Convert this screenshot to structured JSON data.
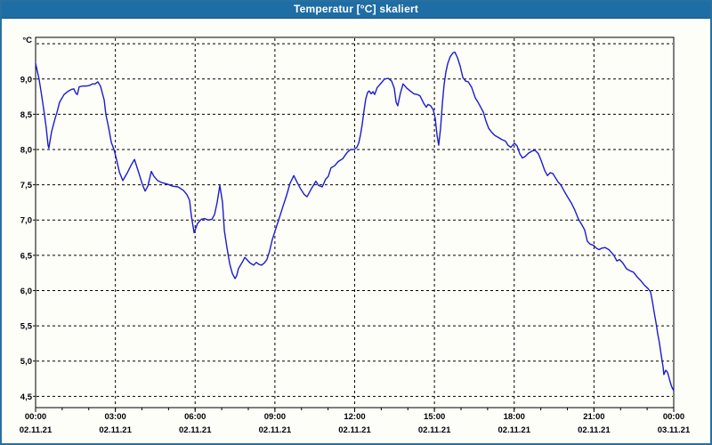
{
  "window": {
    "title": "Temperatur [°C] skaliert"
  },
  "colors": {
    "titlebar_bg": "#1e6da4",
    "titlebar_text": "#ffffff",
    "window_bg": "#fdfef7",
    "window_border": "#28709f",
    "series_line": "#1c1ccd",
    "grid": "#000000",
    "axis": "#000000",
    "label_text": "#000008"
  },
  "chart_data": {
    "type": "line",
    "title": "Temperatur [°C] skaliert",
    "xlabel": "",
    "ylabel": "°C",
    "x_unit": "hours since 02.11.21 00:00",
    "xlim": [
      0,
      24
    ],
    "ylim": [
      4.34,
      9.59
    ],
    "grid": true,
    "legend": "none",
    "y_gridlines": [
      4.5,
      5.0,
      5.5,
      6.0,
      6.5,
      7.0,
      7.5,
      8.0,
      8.5,
      9.0,
      9.5
    ],
    "y_tick_labels": [
      {
        "value": 9.0,
        "label": "9,0"
      },
      {
        "value": 8.5,
        "label": "8,5"
      },
      {
        "value": 8.0,
        "label": "8,0"
      },
      {
        "value": 7.5,
        "label": "7,5"
      },
      {
        "value": 7.0,
        "label": "7,0"
      },
      {
        "value": 6.5,
        "label": "6,5"
      },
      {
        "value": 6.0,
        "label": "6,0"
      },
      {
        "value": 5.5,
        "label": "5,5"
      },
      {
        "value": 5.0,
        "label": "5,0"
      },
      {
        "value": 4.5,
        "label": "4,5"
      }
    ],
    "x_gridline_hours": [
      3,
      6,
      9,
      12,
      15,
      18,
      21
    ],
    "x_minor_tick_every_hours": 1,
    "x_major_ticks": [
      {
        "hour": 0,
        "time": "00:00",
        "date": "02.11.21"
      },
      {
        "hour": 3,
        "time": "03:00",
        "date": "02.11.21"
      },
      {
        "hour": 6,
        "time": "06:00",
        "date": "02.11.21"
      },
      {
        "hour": 9,
        "time": "09:00",
        "date": "02.11.21"
      },
      {
        "hour": 12,
        "time": "12:00",
        "date": "02.11.21"
      },
      {
        "hour": 15,
        "time": "15:00",
        "date": "02.11.21"
      },
      {
        "hour": 18,
        "time": "18:00",
        "date": "02.11.21"
      },
      {
        "hour": 21,
        "time": "21:00",
        "date": "02.11.21"
      },
      {
        "hour": 24,
        "time": "00:00",
        "date": "03.11.21"
      }
    ],
    "series": [
      {
        "name": "Temperatur",
        "color": "#1c1ccd",
        "points": [
          [
            0.0,
            9.22
          ],
          [
            0.07,
            9.1
          ],
          [
            0.13,
            9.0
          ],
          [
            0.23,
            8.76
          ],
          [
            0.33,
            8.5
          ],
          [
            0.4,
            8.3
          ],
          [
            0.47,
            8.06
          ],
          [
            0.5,
            8.02
          ],
          [
            0.6,
            8.25
          ],
          [
            0.74,
            8.45
          ],
          [
            0.8,
            8.52
          ],
          [
            0.9,
            8.67
          ],
          [
            1.07,
            8.78
          ],
          [
            1.24,
            8.83
          ],
          [
            1.34,
            8.85
          ],
          [
            1.44,
            8.86
          ],
          [
            1.51,
            8.8
          ],
          [
            1.57,
            8.78
          ],
          [
            1.64,
            8.89
          ],
          [
            1.77,
            8.9
          ],
          [
            1.91,
            8.9
          ],
          [
            2.04,
            8.91
          ],
          [
            2.14,
            8.93
          ],
          [
            2.24,
            8.93
          ],
          [
            2.34,
            8.96
          ],
          [
            2.44,
            8.9
          ],
          [
            2.58,
            8.7
          ],
          [
            2.64,
            8.5
          ],
          [
            2.74,
            8.32
          ],
          [
            2.85,
            8.1
          ],
          [
            2.95,
            8.0
          ],
          [
            3.05,
            7.85
          ],
          [
            3.15,
            7.68
          ],
          [
            3.28,
            7.56
          ],
          [
            3.45,
            7.67
          ],
          [
            3.58,
            7.77
          ],
          [
            3.72,
            7.86
          ],
          [
            3.88,
            7.67
          ],
          [
            4.02,
            7.5
          ],
          [
            4.12,
            7.41
          ],
          [
            4.22,
            7.48
          ],
          [
            4.35,
            7.69
          ],
          [
            4.45,
            7.62
          ],
          [
            4.59,
            7.56
          ],
          [
            4.75,
            7.53
          ],
          [
            4.95,
            7.51
          ],
          [
            5.15,
            7.48
          ],
          [
            5.36,
            7.47
          ],
          [
            5.56,
            7.42
          ],
          [
            5.69,
            7.36
          ],
          [
            5.79,
            7.28
          ],
          [
            5.86,
            7.05
          ],
          [
            5.96,
            6.82
          ],
          [
            6.09,
            6.95
          ],
          [
            6.23,
            7.01
          ],
          [
            6.36,
            7.02
          ],
          [
            6.49,
            7.0
          ],
          [
            6.63,
            7.01
          ],
          [
            6.73,
            7.08
          ],
          [
            6.83,
            7.25
          ],
          [
            6.93,
            7.49
          ],
          [
            7.03,
            7.25
          ],
          [
            7.1,
            6.85
          ],
          [
            7.2,
            6.6
          ],
          [
            7.3,
            6.38
          ],
          [
            7.4,
            6.24
          ],
          [
            7.5,
            6.17
          ],
          [
            7.56,
            6.21
          ],
          [
            7.63,
            6.31
          ],
          [
            7.77,
            6.4
          ],
          [
            7.87,
            6.47
          ],
          [
            7.97,
            6.43
          ],
          [
            8.07,
            6.39
          ],
          [
            8.2,
            6.36
          ],
          [
            8.3,
            6.4
          ],
          [
            8.4,
            6.37
          ],
          [
            8.5,
            6.36
          ],
          [
            8.6,
            6.39
          ],
          [
            8.7,
            6.44
          ],
          [
            8.8,
            6.56
          ],
          [
            8.9,
            6.72
          ],
          [
            9.0,
            6.84
          ],
          [
            9.14,
            7.0
          ],
          [
            9.31,
            7.2
          ],
          [
            9.44,
            7.35
          ],
          [
            9.57,
            7.52
          ],
          [
            9.71,
            7.63
          ],
          [
            9.84,
            7.53
          ],
          [
            9.97,
            7.44
          ],
          [
            10.11,
            7.36
          ],
          [
            10.21,
            7.33
          ],
          [
            10.38,
            7.45
          ],
          [
            10.54,
            7.55
          ],
          [
            10.64,
            7.49
          ],
          [
            10.78,
            7.47
          ],
          [
            10.91,
            7.58
          ],
          [
            11.01,
            7.62
          ],
          [
            11.11,
            7.74
          ],
          [
            11.25,
            7.77
          ],
          [
            11.38,
            7.83
          ],
          [
            11.55,
            7.87
          ],
          [
            11.72,
            7.96
          ],
          [
            11.85,
            8.0
          ],
          [
            11.98,
            8.0
          ],
          [
            12.08,
            8.03
          ],
          [
            12.15,
            8.09
          ],
          [
            12.22,
            8.21
          ],
          [
            12.28,
            8.35
          ],
          [
            12.35,
            8.55
          ],
          [
            12.42,
            8.72
          ],
          [
            12.49,
            8.81
          ],
          [
            12.55,
            8.83
          ],
          [
            12.62,
            8.79
          ],
          [
            12.69,
            8.82
          ],
          [
            12.75,
            8.78
          ],
          [
            12.85,
            8.88
          ],
          [
            12.99,
            8.94
          ],
          [
            13.12,
            9.0
          ],
          [
            13.26,
            9.01
          ],
          [
            13.39,
            8.97
          ],
          [
            13.49,
            8.87
          ],
          [
            13.56,
            8.67
          ],
          [
            13.62,
            8.62
          ],
          [
            13.72,
            8.8
          ],
          [
            13.82,
            8.93
          ],
          [
            13.96,
            8.87
          ],
          [
            14.09,
            8.83
          ],
          [
            14.23,
            8.79
          ],
          [
            14.36,
            8.78
          ],
          [
            14.46,
            8.76
          ],
          [
            14.59,
            8.66
          ],
          [
            14.69,
            8.6
          ],
          [
            14.76,
            8.64
          ],
          [
            14.86,
            8.62
          ],
          [
            14.96,
            8.56
          ],
          [
            15.03,
            8.44
          ],
          [
            15.1,
            8.2
          ],
          [
            15.16,
            8.06
          ],
          [
            15.23,
            8.3
          ],
          [
            15.3,
            8.66
          ],
          [
            15.36,
            8.91
          ],
          [
            15.43,
            9.1
          ],
          [
            15.5,
            9.22
          ],
          [
            15.6,
            9.32
          ],
          [
            15.7,
            9.37
          ],
          [
            15.77,
            9.38
          ],
          [
            15.87,
            9.3
          ],
          [
            15.97,
            9.18
          ],
          [
            16.07,
            9.02
          ],
          [
            16.17,
            8.97
          ],
          [
            16.27,
            8.96
          ],
          [
            16.4,
            8.88
          ],
          [
            16.54,
            8.73
          ],
          [
            16.64,
            8.67
          ],
          [
            16.74,
            8.6
          ],
          [
            16.84,
            8.53
          ],
          [
            16.94,
            8.4
          ],
          [
            17.04,
            8.3
          ],
          [
            17.14,
            8.25
          ],
          [
            17.27,
            8.2
          ],
          [
            17.41,
            8.17
          ],
          [
            17.54,
            8.14
          ],
          [
            17.67,
            8.12
          ],
          [
            17.77,
            8.06
          ],
          [
            17.87,
            8.03
          ],
          [
            18.01,
            8.09
          ],
          [
            18.11,
            8.05
          ],
          [
            18.21,
            7.94
          ],
          [
            18.31,
            7.88
          ],
          [
            18.41,
            7.9
          ],
          [
            18.54,
            7.95
          ],
          [
            18.68,
            7.98
          ],
          [
            18.78,
            7.99
          ],
          [
            18.91,
            7.94
          ],
          [
            19.01,
            7.85
          ],
          [
            19.15,
            7.7
          ],
          [
            19.25,
            7.63
          ],
          [
            19.35,
            7.67
          ],
          [
            19.45,
            7.66
          ],
          [
            19.55,
            7.6
          ],
          [
            19.65,
            7.54
          ],
          [
            19.75,
            7.5
          ],
          [
            19.88,
            7.41
          ],
          [
            20.02,
            7.32
          ],
          [
            20.15,
            7.24
          ],
          [
            20.28,
            7.14
          ],
          [
            20.42,
            7.01
          ],
          [
            20.55,
            6.93
          ],
          [
            20.65,
            6.86
          ],
          [
            20.75,
            6.7
          ],
          [
            20.85,
            6.66
          ],
          [
            20.99,
            6.64
          ],
          [
            21.09,
            6.6
          ],
          [
            21.19,
            6.58
          ],
          [
            21.29,
            6.6
          ],
          [
            21.42,
            6.61
          ],
          [
            21.56,
            6.58
          ],
          [
            21.66,
            6.54
          ],
          [
            21.76,
            6.49
          ],
          [
            21.86,
            6.42
          ],
          [
            21.96,
            6.44
          ],
          [
            22.09,
            6.39
          ],
          [
            22.22,
            6.31
          ],
          [
            22.36,
            6.28
          ],
          [
            22.49,
            6.26
          ],
          [
            22.63,
            6.19
          ],
          [
            22.76,
            6.14
          ],
          [
            22.89,
            6.08
          ],
          [
            23.03,
            6.03
          ],
          [
            23.13,
            5.98
          ],
          [
            23.2,
            5.84
          ],
          [
            23.26,
            5.7
          ],
          [
            23.33,
            5.55
          ],
          [
            23.4,
            5.38
          ],
          [
            23.46,
            5.26
          ],
          [
            23.53,
            5.08
          ],
          [
            23.6,
            4.91
          ],
          [
            23.63,
            4.81
          ],
          [
            23.7,
            4.87
          ],
          [
            23.77,
            4.84
          ],
          [
            23.8,
            4.8
          ],
          [
            23.87,
            4.7
          ],
          [
            23.93,
            4.63
          ],
          [
            24.0,
            4.58
          ]
        ]
      }
    ]
  }
}
